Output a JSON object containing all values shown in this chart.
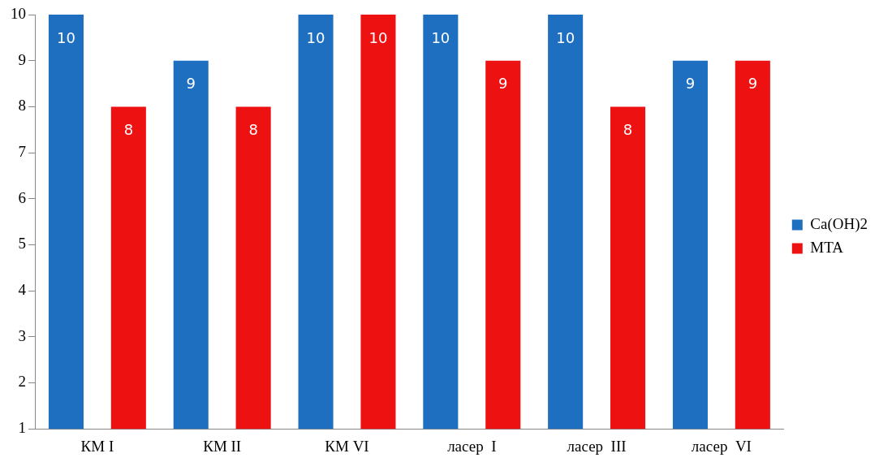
{
  "chart_data": {
    "type": "bar",
    "categories": [
      "КМ I",
      "КМ II",
      "КМ VI",
      "ласер  I",
      "ласер  III",
      "ласер  VI"
    ],
    "series": [
      {
        "name": "Ca(OH)2",
        "color": "#1f6fc0",
        "values": [
          10,
          9,
          10,
          10,
          10,
          9
        ]
      },
      {
        "name": "MTA",
        "color": "#ee1111",
        "values": [
          8,
          8,
          10,
          9,
          8,
          9
        ]
      }
    ],
    "ylim": [
      1,
      10
    ],
    "yticks": [
      1,
      2,
      3,
      4,
      5,
      6,
      7,
      8,
      9,
      10
    ],
    "grid": false,
    "legend": "right",
    "data_labels": true
  }
}
